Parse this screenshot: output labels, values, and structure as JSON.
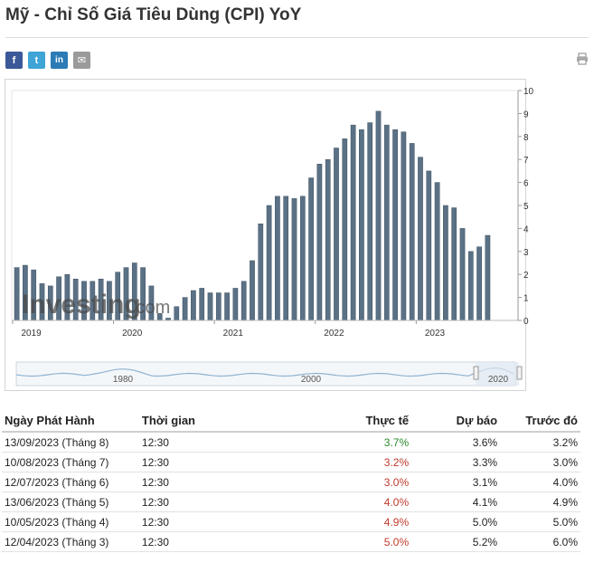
{
  "page": {
    "title": "Mỹ - Chỉ Số Giá Tiêu Dùng (CPI) YoY"
  },
  "share": {
    "facebook": "f",
    "twitter": "t",
    "linkedin": "in",
    "email": "✉"
  },
  "icons": [
    "facebook-icon",
    "twitter-icon",
    "linkedin-icon",
    "email-icon",
    "print-icon"
  ],
  "colors": {
    "bar": "#5b7185",
    "bar_stroke": "#3e5263",
    "positive": "#2a8a2a",
    "negative": "#c0392b",
    "navigator_line": "#8fb3d1"
  },
  "watermark": {
    "brand": "Investing",
    "suffix": ".com"
  },
  "chart_data": {
    "type": "bar",
    "x_tick_labels": [
      "2019",
      "2020",
      "2021",
      "2022",
      "2023"
    ],
    "y_ticks": [
      0,
      1,
      2,
      3,
      4,
      5,
      6,
      7,
      8,
      9,
      10
    ],
    "ylim": [
      0,
      10
    ],
    "y_axis_side": "right",
    "navigator_labels": [
      "1980",
      "2000",
      "2020"
    ],
    "series": [
      {
        "values": [
          2.3,
          2.4,
          2.2,
          1.6,
          1.5,
          1.9,
          2.0,
          1.8,
          1.7,
          1.7,
          1.8,
          1.7,
          2.1,
          2.3,
          2.5,
          2.3,
          1.5,
          0.3,
          0.1,
          0.6,
          1.0,
          1.3,
          1.4,
          1.2,
          1.2,
          1.2,
          1.4,
          1.7,
          2.6,
          4.2,
          5.0,
          5.4,
          5.4,
          5.3,
          5.4,
          6.2,
          6.8,
          7.0,
          7.5,
          7.9,
          8.5,
          8.3,
          8.6,
          9.1,
          8.5,
          8.3,
          8.2,
          7.7,
          7.1,
          6.5,
          6.0,
          5.0,
          4.9,
          4.0,
          3.0,
          3.2,
          3.7
        ]
      }
    ]
  },
  "table": {
    "headers": [
      "Ngày Phát Hành",
      "Thời gian",
      "Thực tế",
      "Dự báo",
      "Trước đó"
    ],
    "rows": [
      {
        "date": "13/09/2023 (Tháng 8)",
        "time": "12:30",
        "actual": "3.7%",
        "forecast": "3.6%",
        "previous": "3.2%",
        "status": "positive"
      },
      {
        "date": "10/08/2023 (Tháng 7)",
        "time": "12:30",
        "actual": "3.2%",
        "forecast": "3.3%",
        "previous": "3.0%",
        "status": "negative"
      },
      {
        "date": "12/07/2023 (Tháng 6)",
        "time": "12:30",
        "actual": "3.0%",
        "forecast": "3.1%",
        "previous": "4.0%",
        "status": "negative"
      },
      {
        "date": "13/06/2023 (Tháng 5)",
        "time": "12:30",
        "actual": "4.0%",
        "forecast": "4.1%",
        "previous": "4.9%",
        "status": "negative"
      },
      {
        "date": "10/05/2023 (Tháng 4)",
        "time": "12:30",
        "actual": "4.9%",
        "forecast": "5.0%",
        "previous": "5.0%",
        "status": "negative"
      },
      {
        "date": "12/04/2023 (Tháng 3)",
        "time": "12:30",
        "actual": "5.0%",
        "forecast": "5.2%",
        "previous": "6.0%",
        "status": "negative"
      }
    ]
  }
}
